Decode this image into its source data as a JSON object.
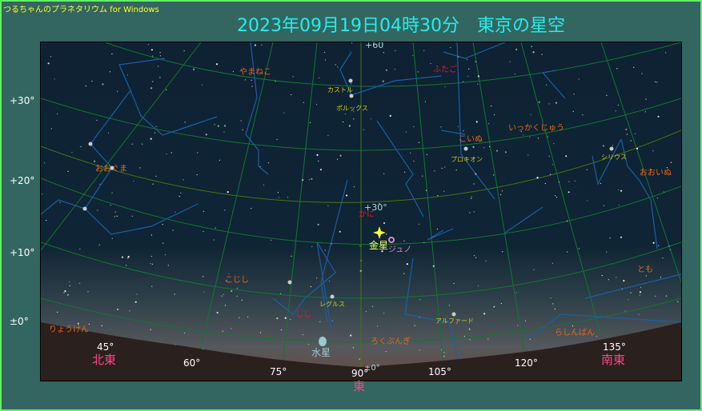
{
  "app_title": "つるちゃんのプラネタリウム for Windows",
  "title": "2023年09月19日04時30分　東京の星空",
  "declination_labels": [
    "+30°",
    "+20°",
    "+10°",
    "±0°"
  ],
  "grid_labels": {
    "dec60": "+60",
    "dec30": "+30°",
    "dec0": "±0°"
  },
  "azimuth_labels": [
    "45°",
    "60°",
    "75°",
    "90°",
    "105°",
    "120°",
    "135°"
  ],
  "directions": {
    "northeast": "北東",
    "east": "東",
    "southeast": "南東"
  },
  "constellations": [
    "やまねこ",
    "ふたご",
    "おおぐま",
    "かに",
    "こじし",
    "こいぬ",
    "いっかくじゅう",
    "おおいぬ",
    "とも",
    "しし",
    "りょうけん",
    "ろくぶんぎ",
    "らしんばん"
  ],
  "stars": [
    "カストル",
    "ポルックス",
    "プロキオン",
    "シリウス",
    "レグルス",
    "アルファード"
  ],
  "planets": {
    "venus": "金星",
    "juno": "ジュノ",
    "mercury": "水星"
  },
  "colors": {
    "background": "#336660",
    "border": "#66ee66",
    "title": "#22eeee",
    "constellation_label": "#ee6611",
    "zodiac_label": "#ee1133",
    "star_label": "#cccc22",
    "constellation_line": "#1a5fa8",
    "grid": "#117733",
    "ground": "#2a201e"
  }
}
